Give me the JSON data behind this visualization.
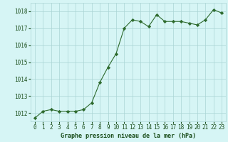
{
  "x": [
    0,
    1,
    2,
    3,
    4,
    5,
    6,
    7,
    8,
    9,
    10,
    11,
    12,
    13,
    14,
    15,
    16,
    17,
    18,
    19,
    20,
    21,
    22,
    23
  ],
  "y": [
    1011.7,
    1012.1,
    1012.2,
    1012.1,
    1012.1,
    1012.1,
    1012.2,
    1012.6,
    1013.8,
    1014.7,
    1015.5,
    1017.0,
    1017.5,
    1017.4,
    1017.1,
    1017.8,
    1017.4,
    1017.4,
    1017.4,
    1017.3,
    1017.2,
    1017.5,
    1018.1,
    1017.9
  ],
  "line_color": "#2d6a2d",
  "marker": "D",
  "marker_size": 2.2,
  "bg_color": "#d6f5f5",
  "grid_color": "#aad4d4",
  "xlabel": "Graphe pression niveau de la mer (hPa)",
  "xlabel_color": "#1a4d1a",
  "xlabel_fontsize": 6.0,
  "tick_color": "#1a4d1a",
  "tick_fontsize": 5.5,
  "ylim": [
    1011.5,
    1018.5
  ],
  "yticks": [
    1012,
    1013,
    1014,
    1015,
    1016,
    1017,
    1018
  ],
  "xlim": [
    -0.5,
    23.5
  ],
  "xticks": [
    0,
    1,
    2,
    3,
    4,
    5,
    6,
    7,
    8,
    9,
    10,
    11,
    12,
    13,
    14,
    15,
    16,
    17,
    18,
    19,
    20,
    21,
    22,
    23
  ]
}
